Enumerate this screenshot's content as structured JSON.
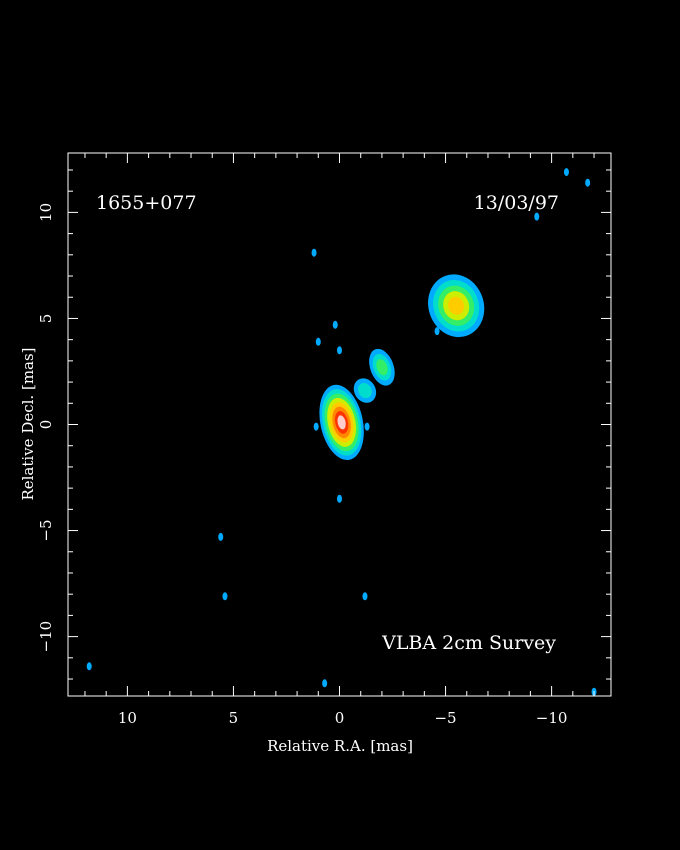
{
  "chart_data": {
    "type": "heatmap",
    "title": "",
    "source_label": "1655+077",
    "date_label": "13/03/97",
    "survey_label": "VLBA 2cm Survey",
    "xlabel": "Relative R.A. [mas]",
    "ylabel": "Relative Decl. [mas]",
    "xlim": [
      12.8,
      -12.8
    ],
    "ylim": [
      -12.8,
      12.8
    ],
    "x_ticks": [
      10,
      5,
      0,
      -5,
      -10
    ],
    "y_ticks": [
      10,
      5,
      0,
      -5,
      -10
    ],
    "x_tick_labels": [
      "10",
      "5",
      "0",
      "−5",
      "−10"
    ],
    "y_tick_labels": [
      "10",
      "5",
      "0",
      "−5",
      "−10"
    ],
    "grid": false,
    "colormap": [
      "#00aaff",
      "#00ddcc",
      "#33ee66",
      "#ccee00",
      "#ffcc00",
      "#ff8800",
      "#ff3300",
      "#ffcccc"
    ],
    "components": [
      {
        "name": "core",
        "x": -0.1,
        "y": 0.1,
        "rx": 1.0,
        "ry": 1.8,
        "angle": -12,
        "levels": 8
      },
      {
        "name": "jet-knot-inner",
        "x": -1.2,
        "y": 1.6,
        "rx": 0.5,
        "ry": 0.6,
        "angle": -30,
        "levels": 2
      },
      {
        "name": "jet-knot-middle",
        "x": -2.0,
        "y": 2.7,
        "rx": 0.55,
        "ry": 0.9,
        "angle": -20,
        "levels": 3
      },
      {
        "name": "jet-knot-outer",
        "x": -5.5,
        "y": 5.6,
        "rx": 1.3,
        "ry": 1.5,
        "angle": -20,
        "levels": 5
      }
    ],
    "noise_spots": [
      {
        "x": 1.2,
        "y": 8.1
      },
      {
        "x": 0.2,
        "y": 4.7
      },
      {
        "x": 0.0,
        "y": 3.5
      },
      {
        "x": 1.0,
        "y": 3.9
      },
      {
        "x": 0.0,
        "y": -3.5
      },
      {
        "x": 5.6,
        "y": -5.3
      },
      {
        "x": 5.4,
        "y": -8.1
      },
      {
        "x": -1.2,
        "y": -8.1
      },
      {
        "x": 11.8,
        "y": -11.4
      },
      {
        "x": 0.7,
        "y": -12.2
      },
      {
        "x": -10.7,
        "y": 11.9
      },
      {
        "x": -11.7,
        "y": 11.4
      },
      {
        "x": -9.3,
        "y": 9.8
      },
      {
        "x": -12.0,
        "y": -12.6
      },
      {
        "x": -4.6,
        "y": 4.4
      },
      {
        "x": 1.1,
        "y": -0.1
      },
      {
        "x": -1.3,
        "y": -0.1
      }
    ]
  }
}
